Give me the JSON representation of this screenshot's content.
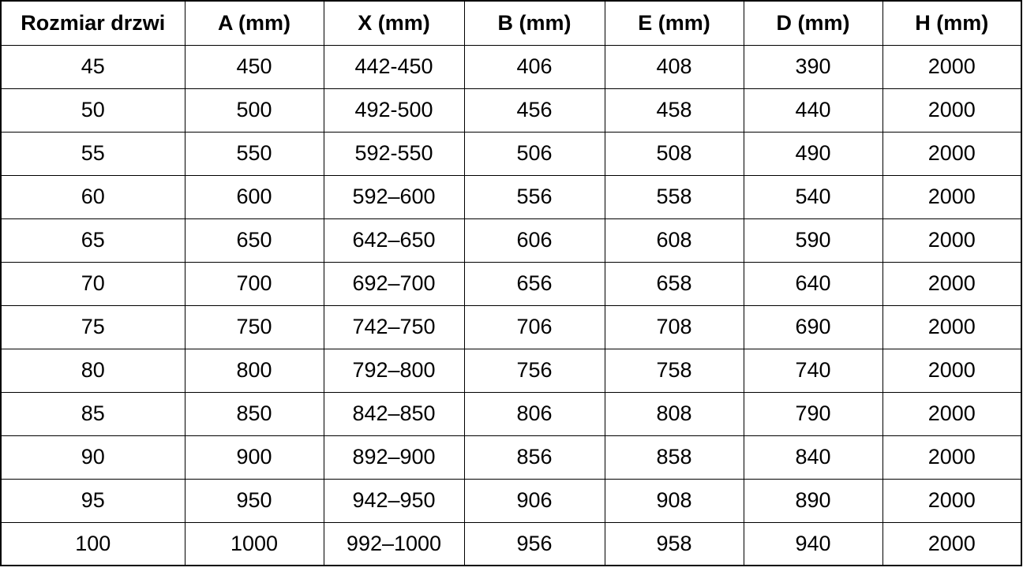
{
  "table": {
    "headers": [
      "Rozmiar drzwi",
      "A (mm)",
      "X (mm)",
      "B (mm)",
      "E (mm)",
      "D (mm)",
      "H (mm)"
    ],
    "rows": [
      [
        "45",
        "450",
        "442-450",
        "406",
        "408",
        "390",
        "2000"
      ],
      [
        "50",
        "500",
        "492-500",
        "456",
        "458",
        "440",
        "2000"
      ],
      [
        "55",
        "550",
        "592-550",
        "506",
        "508",
        "490",
        "2000"
      ],
      [
        "60",
        "600",
        "592–600",
        "556",
        "558",
        "540",
        "2000"
      ],
      [
        "65",
        "650",
        "642–650",
        "606",
        "608",
        "590",
        "2000"
      ],
      [
        "70",
        "700",
        "692–700",
        "656",
        "658",
        "640",
        "2000"
      ],
      [
        "75",
        "750",
        "742–750",
        "706",
        "708",
        "690",
        "2000"
      ],
      [
        "80",
        "800",
        "792–800",
        "756",
        "758",
        "740",
        "2000"
      ],
      [
        "85",
        "850",
        "842–850",
        "806",
        "808",
        "790",
        "2000"
      ],
      [
        "90",
        "900",
        "892–900",
        "856",
        "858",
        "840",
        "2000"
      ],
      [
        "95",
        "950",
        "942–950",
        "906",
        "908",
        "890",
        "2000"
      ],
      [
        "100",
        "1000",
        "992–1000",
        "956",
        "958",
        "940",
        "2000"
      ]
    ],
    "colors": {
      "border": "#000000",
      "background": "#ffffff",
      "text": "#000000"
    }
  }
}
